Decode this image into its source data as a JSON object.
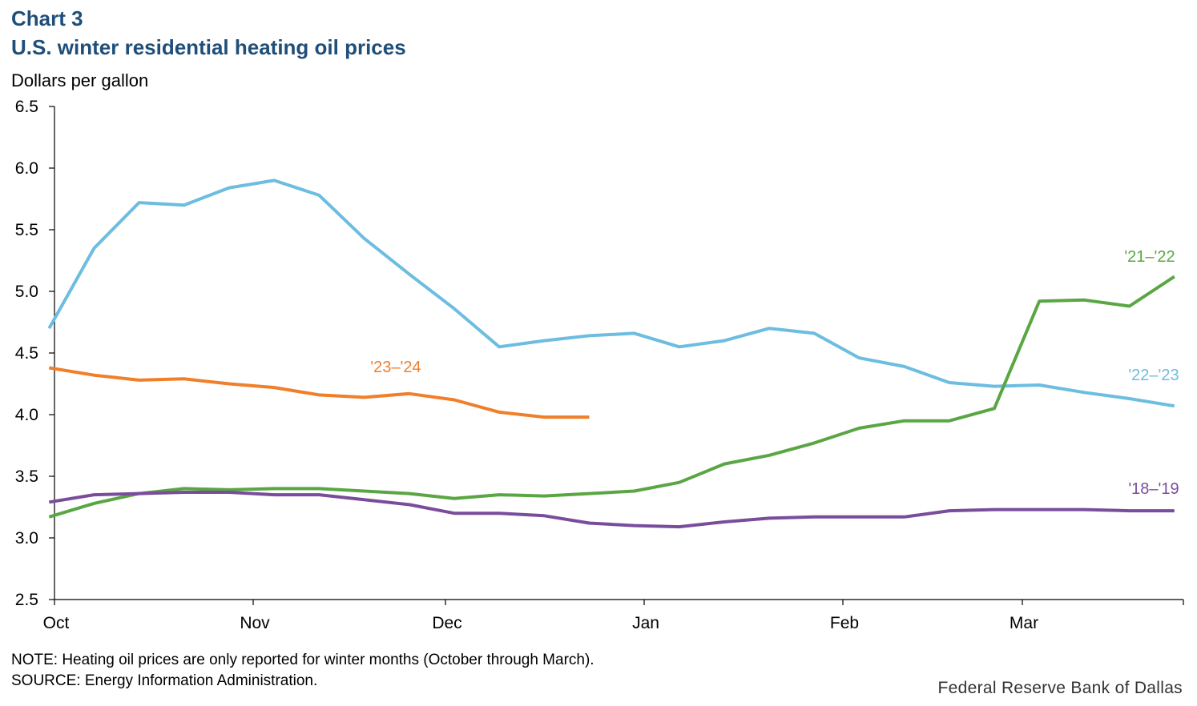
{
  "header": {
    "chart_number": "Chart 3",
    "title": "U.S. winter residential heating oil prices",
    "ylabel": "Dollars per gallon"
  },
  "footer": {
    "note": "NOTE: Heating oil prices are only reported for winter months (October through March).",
    "source": "SOURCE: Energy Information Administration.",
    "credit": "Federal Reserve Bank of Dallas"
  },
  "chart_data": {
    "type": "line",
    "title": "U.S. winter residential heating oil prices",
    "ylabel": "Dollars per gallon",
    "xlabel": "",
    "ylim": [
      2.5,
      6.5
    ],
    "yticks": [
      "2.5",
      "3.0",
      "3.5",
      "4.0",
      "4.5",
      "5.0",
      "5.5",
      "6.0",
      "6.5"
    ],
    "x_tick_labels": [
      "Oct",
      "Nov",
      "Dec",
      "Jan",
      "Feb",
      "Mar"
    ],
    "x_unit": "weeks from start of October",
    "grid": false,
    "legend": "inline labels next to each line",
    "series": [
      {
        "name": "'22–'23",
        "color": "#6cbde0",
        "x": [
          0,
          1,
          2,
          3,
          4,
          5,
          6,
          7,
          8,
          9,
          10,
          11,
          12,
          13,
          14,
          15,
          16,
          17,
          18,
          19,
          20,
          21,
          22,
          23,
          24,
          25
        ],
        "values": [
          4.7,
          5.35,
          5.72,
          5.7,
          5.84,
          5.9,
          5.78,
          5.43,
          5.14,
          4.86,
          4.55,
          4.6,
          4.64,
          4.66,
          4.55,
          4.6,
          4.7,
          4.66,
          4.46,
          4.39,
          4.26,
          4.23,
          4.24,
          4.18,
          4.13,
          4.07
        ]
      },
      {
        "name": "'21–'22",
        "color": "#5aa643",
        "x": [
          0,
          1,
          2,
          3,
          4,
          5,
          6,
          7,
          8,
          9,
          10,
          11,
          12,
          13,
          14,
          15,
          16,
          17,
          18,
          19,
          20,
          21,
          22,
          23,
          24,
          25
        ],
        "values": [
          3.17,
          3.28,
          3.36,
          3.4,
          3.39,
          3.4,
          3.4,
          3.38,
          3.36,
          3.32,
          3.35,
          3.34,
          3.36,
          3.38,
          3.45,
          3.6,
          3.67,
          3.77,
          3.89,
          3.95,
          3.95,
          4.05,
          4.92,
          4.93,
          4.88,
          5.12
        ]
      },
      {
        "name": "'18–'19",
        "color": "#7a4d9c",
        "x": [
          0,
          1,
          2,
          3,
          4,
          5,
          6,
          7,
          8,
          9,
          10,
          11,
          12,
          13,
          14,
          15,
          16,
          17,
          18,
          19,
          20,
          21,
          22,
          23,
          24,
          25
        ],
        "values": [
          3.29,
          3.35,
          3.36,
          3.37,
          3.37,
          3.35,
          3.35,
          3.31,
          3.27,
          3.2,
          3.2,
          3.18,
          3.12,
          3.1,
          3.09,
          3.13,
          3.16,
          3.17,
          3.17,
          3.17,
          3.22,
          3.23,
          3.23,
          3.23,
          3.22,
          3.22
        ]
      },
      {
        "name": "'23–'24",
        "color": "#f07f2a",
        "x": [
          0,
          1,
          2,
          3,
          4,
          5,
          6,
          7,
          8,
          9,
          10,
          11,
          12
        ],
        "values": [
          4.38,
          4.32,
          4.28,
          4.29,
          4.25,
          4.22,
          4.16,
          4.14,
          4.17,
          4.12,
          4.02,
          3.98,
          3.98
        ]
      }
    ]
  }
}
